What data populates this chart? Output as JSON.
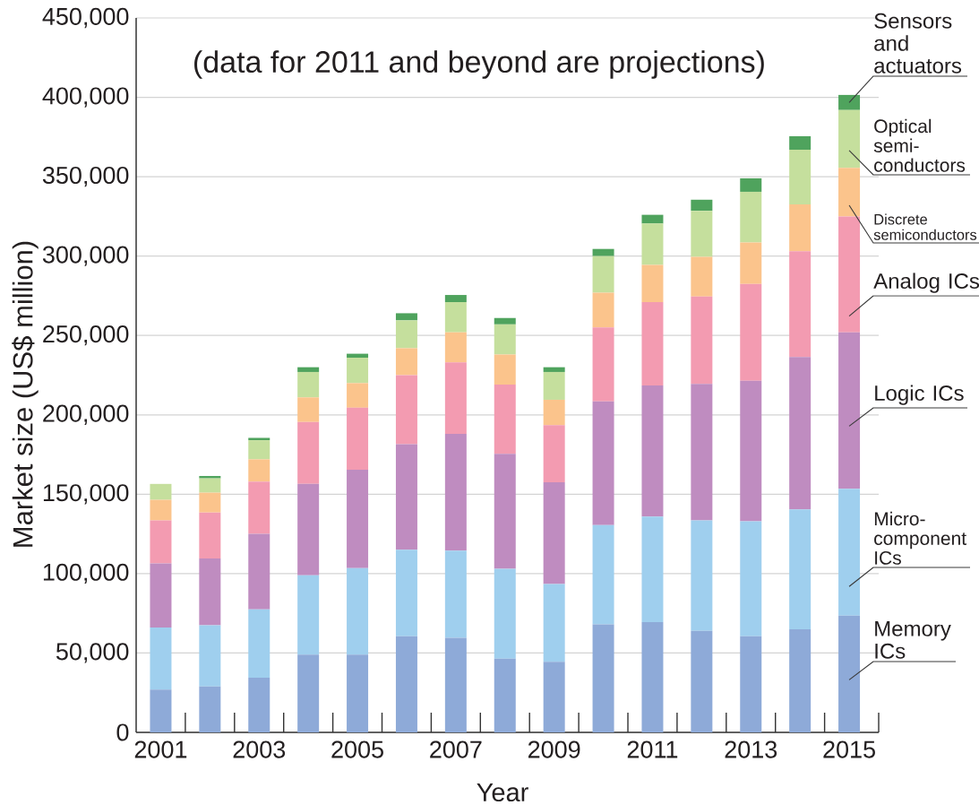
{
  "chart_data": {
    "type": "bar",
    "stacked": true,
    "xlabel": "Year",
    "ylabel": "Market size (US$ million)",
    "annotations": [
      "(data for 2011 and beyond are projections)"
    ],
    "categories": [
      "2001",
      null,
      "2003",
      null,
      "2005",
      null,
      "2007",
      null,
      "2009",
      null,
      "2011",
      null,
      "2013",
      null,
      "2015"
    ],
    "ylim": [
      0,
      450000
    ],
    "yticks": [
      0,
      {
        "value": 50000,
        "label": "50,000"
      },
      {
        "value": 100000,
        "label": "100,000"
      },
      {
        "value": 150000,
        "label": "150,000"
      },
      {
        "value": 200000,
        "label": "200,000"
      },
      {
        "value": 250000,
        "label": "250,000"
      },
      {
        "value": 300000,
        "label": "300,000"
      },
      {
        "value": 350000,
        "label": "350,000"
      },
      {
        "value": 400000,
        "label": "400,000"
      },
      {
        "value": 450000,
        "label": "450,000"
      }
    ],
    "grid": "y",
    "series": [
      {
        "name": "Memory ICs",
        "color": "#8eaad8",
        "values": [
          27000,
          29000,
          34500,
          49000,
          49000,
          60500,
          59500,
          46500,
          44500,
          68000,
          69500,
          64000,
          60500,
          65000,
          73500
        ]
      },
      {
        "name": "Micro-component ICs",
        "color": "#9fcfee",
        "values": [
          39000,
          38500,
          43000,
          50000,
          54500,
          54500,
          55000,
          56500,
          49000,
          62500,
          66500,
          69500,
          72500,
          75500,
          80000
        ]
      },
      {
        "name": "Logic ICs",
        "color": "#bf8cc0",
        "values": [
          40500,
          42000,
          47500,
          57500,
          62000,
          66500,
          73500,
          72500,
          64000,
          78000,
          82500,
          86000,
          88500,
          96000,
          98500
        ]
      },
      {
        "name": "Analog ICs",
        "color": "#f39bb1",
        "values": [
          27000,
          29000,
          33000,
          39000,
          39000,
          43500,
          45000,
          43500,
          36000,
          46500,
          52500,
          55000,
          61000,
          66500,
          73000
        ]
      },
      {
        "name": "Discrete semiconductors",
        "color": "#fbc48c",
        "values": [
          13000,
          12500,
          14000,
          15500,
          15500,
          17000,
          19000,
          19000,
          16000,
          22000,
          23500,
          25000,
          26000,
          29500,
          30500
        ]
      },
      {
        "name": "Optical semi-conductors",
        "color": "#c5df9d",
        "values": [
          10000,
          9000,
          12000,
          16000,
          16000,
          17500,
          19000,
          19000,
          17500,
          23000,
          26000,
          29000,
          32000,
          34500,
          36500
        ]
      },
      {
        "name": "Sensors and actuators",
        "color": "#4fa35d",
        "values": [
          null,
          1500,
          1500,
          3000,
          2500,
          4500,
          4500,
          4000,
          3000,
          4500,
          5500,
          7000,
          8500,
          8500,
          9500
        ]
      }
    ]
  }
}
